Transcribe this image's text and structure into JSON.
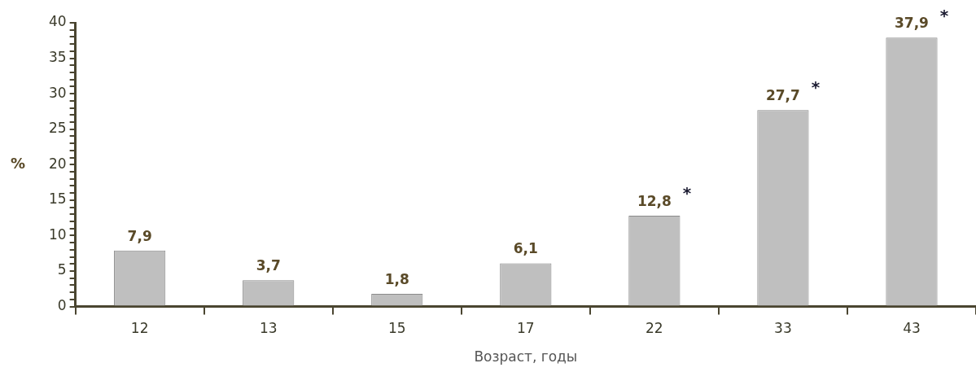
{
  "chart_data": {
    "type": "bar",
    "xlabel": "Возраст, годы",
    "ylabel": "%",
    "categories": [
      "12",
      "13",
      "15",
      "17",
      "22",
      "33",
      "43"
    ],
    "values": [
      7.9,
      3.7,
      1.8,
      6.1,
      12.8,
      27.7,
      37.9
    ],
    "value_labels": [
      "7,9",
      "3,7",
      "1,8",
      "6,1",
      "12,8",
      "27,7",
      "37,9"
    ],
    "color": "#bfbfbf",
    "ylim": [
      0,
      40
    ],
    "yticks": [
      0,
      {
        "value": 1,
        "label": null
      },
      {
        "value": 2,
        "label": null
      },
      {
        "value": 3,
        "label": null
      },
      {
        "value": 4,
        "label": null
      },
      5,
      {
        "value": 6,
        "label": null
      },
      {
        "value": 7,
        "label": null
      },
      {
        "value": 8,
        "label": null
      },
      {
        "value": 9,
        "label": null
      },
      10,
      {
        "value": 11,
        "label": null
      },
      {
        "value": 12,
        "label": null
      },
      {
        "value": 13,
        "label": null
      },
      {
        "value": 14,
        "label": null
      },
      15,
      {
        "value": 16,
        "label": null
      },
      {
        "value": 17,
        "label": null
      },
      {
        "value": 18,
        "label": null
      },
      {
        "value": 19,
        "label": null
      },
      20,
      {
        "value": 21,
        "label": null
      },
      {
        "value": 22,
        "label": null
      },
      {
        "value": 23,
        "label": null
      },
      {
        "value": 24,
        "label": null
      },
      25,
      {
        "value": 26,
        "label": null
      },
      {
        "value": 27,
        "label": null
      },
      {
        "value": 28,
        "label": null
      },
      {
        "value": 29,
        "label": null
      },
      30,
      {
        "value": 31,
        "label": null
      },
      {
        "value": 32,
        "label": null
      },
      {
        "value": 33,
        "label": null
      },
      {
        "value": 34,
        "label": null
      },
      35,
      {
        "value": 36,
        "label": null
      },
      {
        "value": 37,
        "label": null
      },
      {
        "value": 38,
        "label": null
      },
      {
        "value": 39,
        "label": null
      },
      40
    ],
    "annotations": [
      {
        "text": "*",
        "x": "22",
        "y": 12.8
      },
      {
        "text": "*",
        "x": "33",
        "y": 27.7
      },
      {
        "text": "*",
        "x": "43",
        "y": 37.9
      }
    ],
    "grid": false,
    "legend": false
  }
}
